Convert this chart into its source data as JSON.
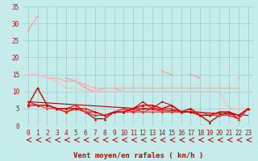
{
  "xlabel": "Vent moyen/en rafales ( km/h )",
  "xlim": [
    -0.5,
    23.5
  ],
  "ylim": [
    0,
    35
  ],
  "yticks": [
    0,
    5,
    10,
    15,
    20,
    25,
    30,
    35
  ],
  "xticks": [
    0,
    1,
    2,
    3,
    4,
    5,
    6,
    7,
    8,
    9,
    10,
    11,
    12,
    13,
    14,
    15,
    16,
    17,
    18,
    19,
    20,
    21,
    22,
    23
  ],
  "bg_color": "#c5eceb",
  "grid_color": "#a0d0cf",
  "series": [
    {
      "x": [
        0,
        1,
        2,
        3,
        4,
        5,
        6,
        7,
        8,
        9,
        10,
        11,
        12,
        13,
        14,
        15,
        16,
        17,
        18,
        19,
        20,
        21,
        22,
        23
      ],
      "y": [
        28,
        32,
        null,
        null,
        14,
        13,
        11,
        10,
        11,
        11,
        10,
        null,
        15,
        null,
        16,
        15,
        null,
        15,
        14,
        null,
        null,
        null,
        14,
        null
      ],
      "color": "#ff9999",
      "lw": 0.9,
      "marker": "s",
      "ms": 2.0
    },
    {
      "x": [
        0,
        1,
        2,
        3,
        4,
        5,
        6,
        7,
        8,
        9,
        10,
        11,
        12,
        13,
        14,
        15,
        16,
        17,
        18,
        19,
        20,
        21,
        22,
        23
      ],
      "y": [
        15,
        15,
        14,
        14,
        13,
        13,
        12,
        11,
        11,
        11,
        11,
        11,
        11,
        11,
        11,
        11,
        11,
        11,
        11,
        11,
        11,
        11,
        11,
        null
      ],
      "color": "#ffaaaa",
      "lw": 0.9,
      "marker": "s",
      "ms": 2.0
    },
    {
      "x": [
        0,
        1,
        2,
        3,
        4,
        5,
        6,
        7,
        8,
        9,
        10,
        11,
        12,
        13,
        14,
        15,
        16,
        17,
        18,
        19,
        20,
        21,
        22,
        23
      ],
      "y": [
        15,
        15,
        14,
        13,
        11,
        11,
        10,
        10,
        10,
        10,
        10,
        10,
        10,
        10,
        10,
        10,
        10,
        10,
        10,
        10,
        10,
        5,
        5,
        5
      ],
      "color": "#ffbbbb",
      "lw": 0.9,
      "marker": "s",
      "ms": 2.0
    },
    {
      "x": [
        0,
        1,
        2,
        3,
        4,
        5,
        6,
        7,
        8,
        9,
        10,
        11,
        12,
        13,
        14,
        15,
        16,
        17,
        18,
        19,
        20,
        21,
        22,
        23
      ],
      "y": [
        6,
        11,
        6,
        5,
        4,
        5,
        4,
        2,
        2,
        4,
        4,
        5,
        6,
        6,
        5,
        6,
        4,
        5,
        3,
        1,
        3,
        4,
        2,
        5
      ],
      "color": "#cc0000",
      "lw": 1.0,
      "marker": "^",
      "ms": 2.5
    },
    {
      "x": [
        0,
        1,
        2,
        3,
        4,
        5,
        6,
        7,
        8,
        9,
        10,
        11,
        12,
        13,
        14,
        15,
        16,
        17,
        18,
        19,
        20,
        21,
        22,
        23
      ],
      "y": [
        7,
        6,
        6,
        5,
        5,
        6,
        4,
        3,
        3,
        4,
        5,
        4,
        5,
        5,
        5,
        5,
        4,
        4,
        3,
        3,
        4,
        4,
        3,
        5
      ],
      "color": "#dd1111",
      "lw": 0.8,
      "marker": "^",
      "ms": 2.0
    },
    {
      "x": [
        0,
        1,
        2,
        3,
        4,
        5,
        6,
        7,
        8,
        9,
        10,
        11,
        12,
        13,
        14,
        15,
        16,
        17,
        18,
        19,
        20,
        21,
        22,
        23
      ],
      "y": [
        6,
        6,
        6,
        5,
        4,
        5,
        4,
        4,
        3,
        4,
        4,
        4,
        4,
        4,
        4,
        4,
        4,
        4,
        4,
        3,
        3,
        3,
        2,
        5
      ],
      "color": "#ee2222",
      "lw": 0.8,
      "marker": "^",
      "ms": 2.0
    },
    {
      "x": [
        0,
        1,
        2,
        3,
        4,
        5,
        6,
        7,
        8,
        9,
        10,
        11,
        12,
        13,
        14,
        15,
        16,
        17,
        18,
        19,
        20,
        21,
        22,
        23
      ],
      "y": [
        6,
        6,
        5,
        5,
        5,
        5,
        4,
        4,
        3,
        4,
        5,
        5,
        4,
        5,
        4,
        4,
        4,
        4,
        3,
        3,
        3,
        3,
        2,
        5
      ],
      "color": "#ff3333",
      "lw": 0.8,
      "marker": "^",
      "ms": 2.0
    },
    {
      "x": [
        0,
        1,
        2,
        3,
        4,
        5,
        6,
        7,
        8,
        9,
        10,
        11,
        12,
        13,
        14,
        15,
        16,
        17,
        18,
        19,
        20,
        21,
        22,
        23
      ],
      "y": [
        6,
        6,
        6,
        5,
        5,
        5,
        5,
        4,
        3,
        4,
        4,
        5,
        7,
        5,
        7,
        6,
        4,
        4,
        3,
        3,
        4,
        4,
        3,
        5
      ],
      "color": "#cc0000",
      "lw": 0.8,
      "marker": "^",
      "ms": 2.0
    },
    {
      "x": [
        0,
        23
      ],
      "y": [
        7,
        3
      ],
      "color": "#aa0000",
      "lw": 0.8,
      "marker": null,
      "ms": 0
    }
  ],
  "arrow_color": "#cc0000",
  "xlabel_color": "#cc0000",
  "tick_color": "#cc0000",
  "tick_fontsize": 5.5,
  "xlabel_fontsize": 6.5
}
